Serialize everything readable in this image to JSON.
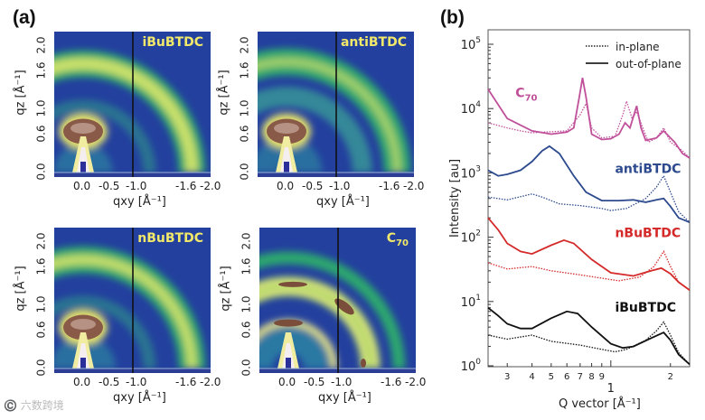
{
  "panel_a": {
    "label": "(a)",
    "panels": [
      {
        "title": "iBuBTDC",
        "sub": ""
      },
      {
        "title": "antiBTDC",
        "sub": ""
      },
      {
        "title": "nBuBTDC",
        "sub": ""
      },
      {
        "title": "C",
        "sub": "70"
      }
    ],
    "y_ticks": [
      "0.0",
      "0.6",
      "1.0",
      "1.6",
      "2.0"
    ],
    "x_ticks": [
      "0.0",
      "-0.5",
      "-1.0",
      "-1.6",
      "-2.0"
    ],
    "ylabel": "qz [Å⁻¹]",
    "xlabel": "qxy [Å⁻¹]"
  },
  "watermark": "©️ 六数跨境",
  "chart_data": {
    "type": "line",
    "panel_label": "(b)",
    "xlabel": "Q vector [Å⁻¹]",
    "ylabel": "Intensity [au]",
    "xscale": "log",
    "yscale": "log",
    "xlim": [
      0.24,
      2.5
    ],
    "ylim": [
      1,
      100000
    ],
    "x_ticks": [
      {
        "v": 0.3,
        "label": "3"
      },
      {
        "v": 0.4,
        "label": "4"
      },
      {
        "v": 0.5,
        "label": "5"
      },
      {
        "v": 0.6,
        "label": "6"
      },
      {
        "v": 0.7,
        "label": "7"
      },
      {
        "v": 0.8,
        "label": "8"
      },
      {
        "v": 0.9,
        "label": "9"
      },
      {
        "v": 2,
        "label": "2"
      }
    ],
    "x_decade_label": {
      "v": 1,
      "label": "1"
    },
    "y_ticks": [
      {
        "v": 1,
        "base": "10",
        "exp": "0"
      },
      {
        "v": 10,
        "base": "10",
        "exp": "1"
      },
      {
        "v": 100,
        "base": "10",
        "exp": "2"
      },
      {
        "v": 1000,
        "base": "10",
        "exp": "3"
      },
      {
        "v": 10000,
        "base": "10",
        "exp": "4"
      },
      {
        "v": 100000,
        "base": "10",
        "exp": "5"
      }
    ],
    "legend": {
      "position": "top-right",
      "entries": [
        {
          "label": "in-plane",
          "style": "dotted"
        },
        {
          "label": "out-of-plane",
          "style": "solid"
        }
      ]
    },
    "series": [
      {
        "name": "C70",
        "label": "C",
        "label_sub": "70",
        "color": "#c0509a",
        "label_at": [
          0.33,
          15000
        ],
        "solid": [
          [
            0.24,
            20000
          ],
          [
            0.3,
            7000
          ],
          [
            0.4,
            4500
          ],
          [
            0.5,
            4000
          ],
          [
            0.6,
            4300
          ],
          [
            0.65,
            5000
          ],
          [
            0.69,
            14000
          ],
          [
            0.72,
            30000
          ],
          [
            0.75,
            15000
          ],
          [
            0.8,
            4000
          ],
          [
            0.9,
            3300
          ],
          [
            1.0,
            3400
          ],
          [
            1.1,
            4000
          ],
          [
            1.18,
            6000
          ],
          [
            1.25,
            5000
          ],
          [
            1.35,
            11000
          ],
          [
            1.42,
            5000
          ],
          [
            1.5,
            3200
          ],
          [
            1.7,
            3500
          ],
          [
            1.85,
            4500
          ],
          [
            2.0,
            3500
          ],
          [
            2.1,
            3000
          ],
          [
            2.3,
            2000
          ],
          [
            2.5,
            1700
          ]
        ],
        "dotted": [
          [
            0.24,
            6000
          ],
          [
            0.3,
            5000
          ],
          [
            0.35,
            4500
          ],
          [
            0.4,
            4200
          ],
          [
            0.6,
            4500
          ],
          [
            0.7,
            8000
          ],
          [
            0.75,
            12000
          ],
          [
            0.8,
            5000
          ],
          [
            0.9,
            3500
          ],
          [
            1.05,
            3700
          ],
          [
            1.15,
            8000
          ],
          [
            1.2,
            13000
          ],
          [
            1.28,
            7000
          ],
          [
            1.35,
            9000
          ],
          [
            1.45,
            5000
          ],
          [
            1.55,
            3000
          ],
          [
            1.7,
            3500
          ],
          [
            1.85,
            5000
          ],
          [
            2.0,
            3000
          ],
          [
            2.3,
            2200
          ],
          [
            2.5,
            1700
          ]
        ]
      },
      {
        "name": "antiBTDC",
        "label": "antiBTDC",
        "label_sub": "",
        "color": "#2d4a8e",
        "label_at": [
          1.05,
          1000
        ],
        "solid": [
          [
            0.24,
            1100
          ],
          [
            0.27,
            900
          ],
          [
            0.3,
            950
          ],
          [
            0.35,
            1100
          ],
          [
            0.4,
            1500
          ],
          [
            0.45,
            2200
          ],
          [
            0.49,
            2600
          ],
          [
            0.55,
            2000
          ],
          [
            0.65,
            900
          ],
          [
            0.75,
            500
          ],
          [
            0.9,
            370
          ],
          [
            1.1,
            370
          ],
          [
            1.3,
            380
          ],
          [
            1.5,
            350
          ],
          [
            1.7,
            380
          ],
          [
            1.85,
            400
          ],
          [
            2.0,
            300
          ],
          [
            2.2,
            200
          ],
          [
            2.5,
            170
          ]
        ],
        "dotted": [
          [
            0.24,
            420
          ],
          [
            0.3,
            380
          ],
          [
            0.4,
            470
          ],
          [
            0.45,
            420
          ],
          [
            0.55,
            330
          ],
          [
            0.7,
            310
          ],
          [
            0.9,
            280
          ],
          [
            1.0,
            260
          ],
          [
            1.2,
            280
          ],
          [
            1.5,
            400
          ],
          [
            1.7,
            600
          ],
          [
            1.85,
            900
          ],
          [
            2.0,
            500
          ],
          [
            2.2,
            250
          ],
          [
            2.5,
            170
          ]
        ]
      },
      {
        "name": "nBuBTDC",
        "label": "nBuBTDC",
        "label_sub": "",
        "color": "#d42a2a",
        "label_at": [
          1.05,
          100
        ],
        "solid": [
          [
            0.24,
            200
          ],
          [
            0.27,
            130
          ],
          [
            0.3,
            80
          ],
          [
            0.35,
            60
          ],
          [
            0.4,
            55
          ],
          [
            0.5,
            75
          ],
          [
            0.58,
            90
          ],
          [
            0.65,
            80
          ],
          [
            0.8,
            45
          ],
          [
            1.0,
            28
          ],
          [
            1.3,
            25
          ],
          [
            1.6,
            30
          ],
          [
            1.8,
            33
          ],
          [
            2.0,
            27
          ],
          [
            2.2,
            20
          ],
          [
            2.5,
            15
          ]
        ],
        "dotted": [
          [
            0.24,
            40
          ],
          [
            0.3,
            32
          ],
          [
            0.4,
            35
          ],
          [
            0.5,
            30
          ],
          [
            0.7,
            26
          ],
          [
            0.9,
            23
          ],
          [
            1.1,
            21
          ],
          [
            1.4,
            24
          ],
          [
            1.65,
            35
          ],
          [
            1.85,
            60
          ],
          [
            2.0,
            35
          ],
          [
            2.2,
            20
          ],
          [
            2.5,
            15
          ]
        ]
      },
      {
        "name": "iBuBTDC",
        "label": "iBuBTDC",
        "label_sub": "",
        "color": "#111111",
        "label_at": [
          1.05,
          7
        ],
        "solid": [
          [
            0.24,
            8
          ],
          [
            0.27,
            6
          ],
          [
            0.3,
            4.5
          ],
          [
            0.35,
            3.8
          ],
          [
            0.4,
            3.8
          ],
          [
            0.5,
            5.5
          ],
          [
            0.6,
            7
          ],
          [
            0.68,
            6.5
          ],
          [
            0.8,
            4
          ],
          [
            1.0,
            2.2
          ],
          [
            1.15,
            1.9
          ],
          [
            1.3,
            2
          ],
          [
            1.6,
            2.7
          ],
          [
            1.85,
            3.3
          ],
          [
            2.0,
            2.5
          ],
          [
            2.2,
            1.5
          ],
          [
            2.5,
            1.05
          ]
        ],
        "dotted": [
          [
            0.24,
            3
          ],
          [
            0.3,
            2.6
          ],
          [
            0.4,
            3
          ],
          [
            0.5,
            2.4
          ],
          [
            0.7,
            2.1
          ],
          [
            0.9,
            1.8
          ],
          [
            1.05,
            1.65
          ],
          [
            1.2,
            1.8
          ],
          [
            1.5,
            2.5
          ],
          [
            1.7,
            3.5
          ],
          [
            1.85,
            4.8
          ],
          [
            2.0,
            3
          ],
          [
            2.2,
            1.6
          ],
          [
            2.5,
            1.05
          ]
        ]
      }
    ]
  }
}
